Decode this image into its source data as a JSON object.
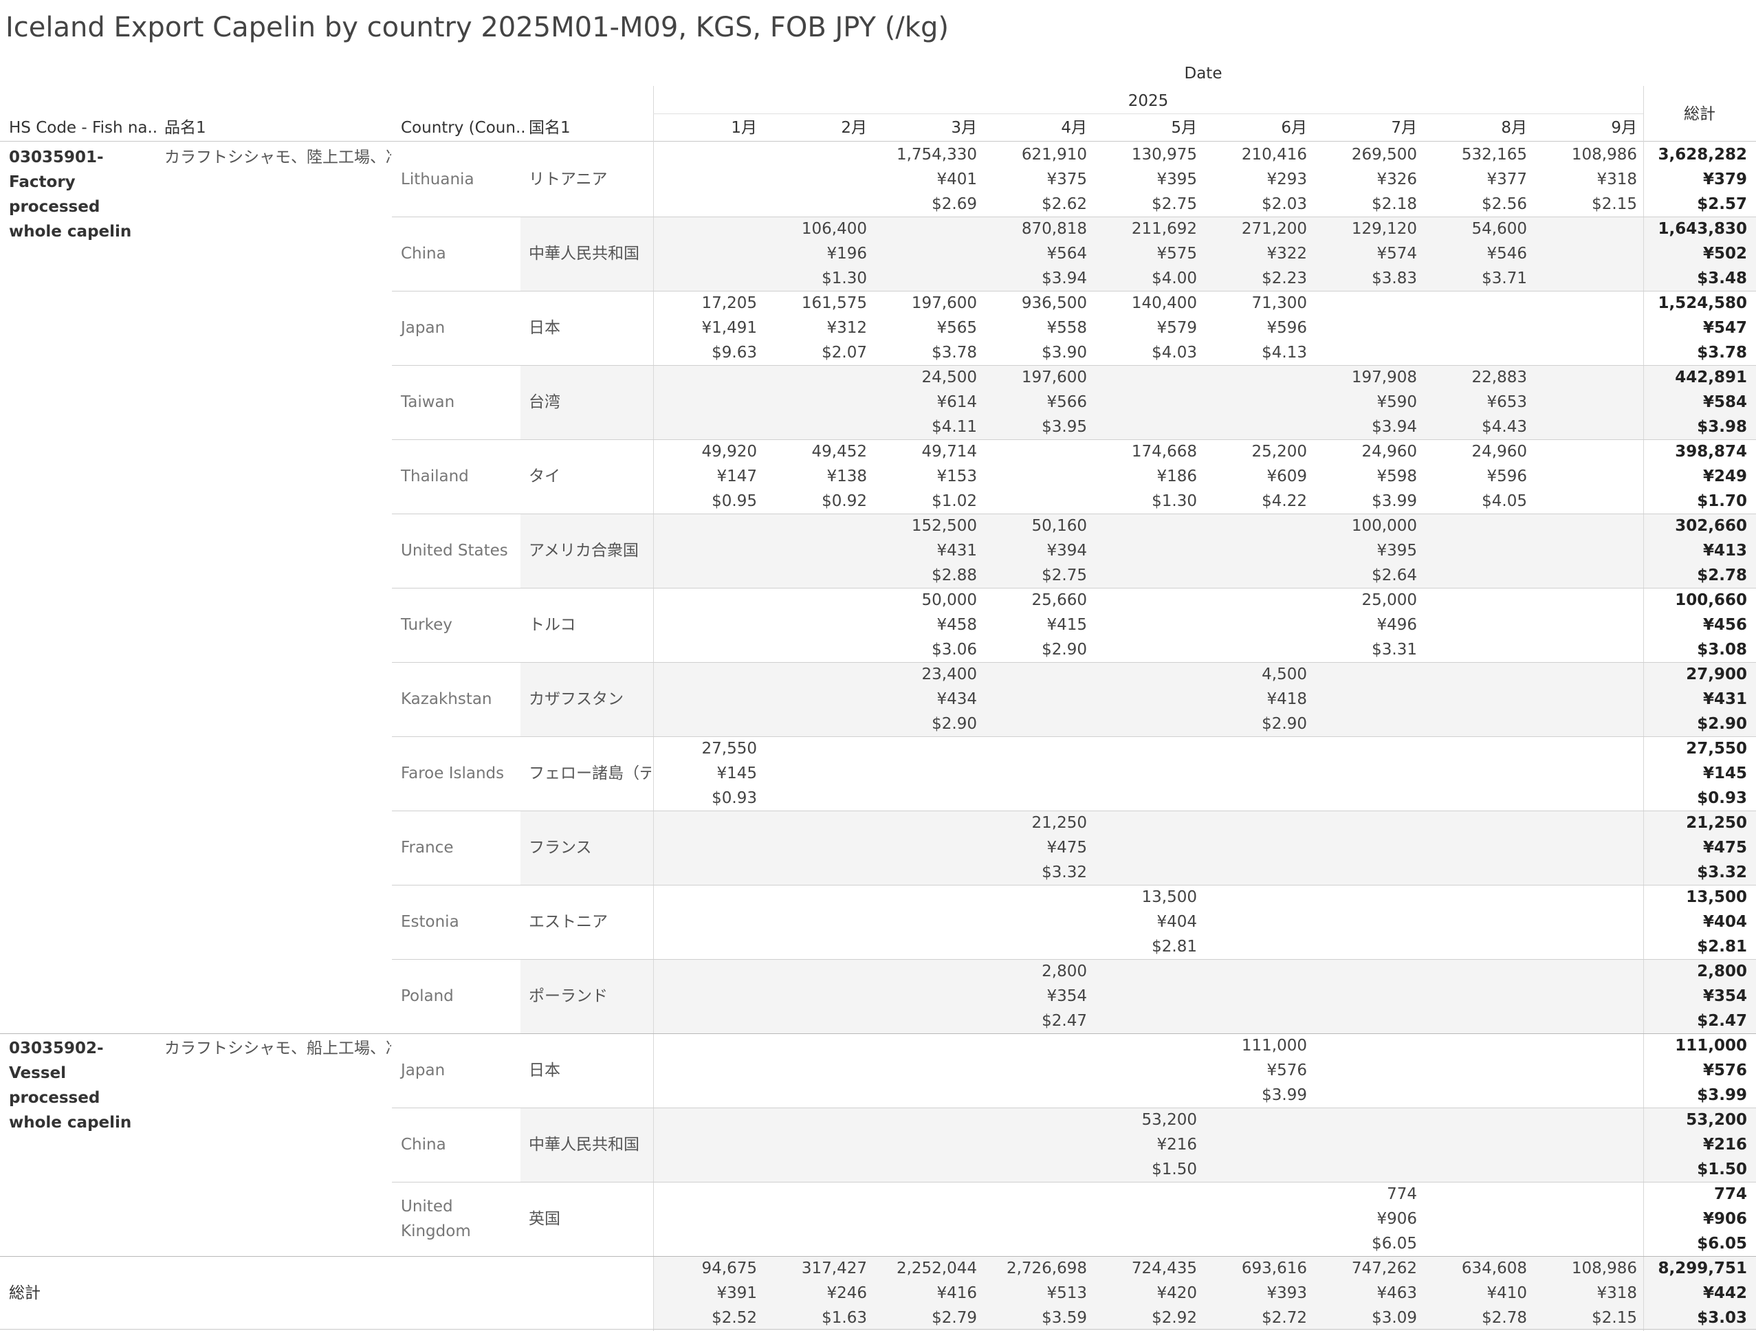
{
  "title": "Iceland Export Capelin by country 2025M01-M09, KGS, FOB JPY (/kg)",
  "header": {
    "date": "Date",
    "year": "2025",
    "hs_code": "HS Code - Fish na..",
    "name_ja": "品名1",
    "country": "Country (Coun..",
    "country_ja": "国名1",
    "months": [
      "1月",
      "2月",
      "3月",
      "4月",
      "5月",
      "6月",
      "7月",
      "8月",
      "9月"
    ],
    "total": "総計"
  },
  "groups": [
    {
      "code": "03035901-Factory processed whole capelin",
      "name_ja": "カラフトシシャモ、陸上工場、冷凍..",
      "rows": [
        {
          "country": "Lithuania",
          "country_ja": "リトアニア",
          "cells": [
            null,
            null,
            [
              "1,754,330",
              "¥401",
              "$2.69"
            ],
            [
              "621,910",
              "¥375",
              "$2.62"
            ],
            [
              "130,975",
              "¥395",
              "$2.75"
            ],
            [
              "210,416",
              "¥293",
              "$2.03"
            ],
            [
              "269,500",
              "¥326",
              "$2.18"
            ],
            [
              "532,165",
              "¥377",
              "$2.56"
            ],
            [
              "108,986",
              "¥318",
              "$2.15"
            ]
          ],
          "total": [
            "3,628,282",
            "¥379",
            "$2.57"
          ]
        },
        {
          "country": "China",
          "country_ja": "中華人民共和国",
          "cells": [
            null,
            [
              "106,400",
              "¥196",
              "$1.30"
            ],
            null,
            [
              "870,818",
              "¥564",
              "$3.94"
            ],
            [
              "211,692",
              "¥575",
              "$4.00"
            ],
            [
              "271,200",
              "¥322",
              "$2.23"
            ],
            [
              "129,120",
              "¥574",
              "$3.83"
            ],
            [
              "54,600",
              "¥546",
              "$3.71"
            ],
            null
          ],
          "total": [
            "1,643,830",
            "¥502",
            "$3.48"
          ]
        },
        {
          "country": "Japan",
          "country_ja": "日本",
          "cells": [
            [
              "17,205",
              "¥1,491",
              "$9.63"
            ],
            [
              "161,575",
              "¥312",
              "$2.07"
            ],
            [
              "197,600",
              "¥565",
              "$3.78"
            ],
            [
              "936,500",
              "¥558",
              "$3.90"
            ],
            [
              "140,400",
              "¥579",
              "$4.03"
            ],
            [
              "71,300",
              "¥596",
              "$4.13"
            ],
            null,
            null,
            null
          ],
          "total": [
            "1,524,580",
            "¥547",
            "$3.78"
          ]
        },
        {
          "country": "Taiwan",
          "country_ja": "台湾",
          "cells": [
            null,
            null,
            [
              "24,500",
              "¥614",
              "$4.11"
            ],
            [
              "197,600",
              "¥566",
              "$3.95"
            ],
            null,
            null,
            [
              "197,908",
              "¥590",
              "$3.94"
            ],
            [
              "22,883",
              "¥653",
              "$4.43"
            ],
            null
          ],
          "total": [
            "442,891",
            "¥584",
            "$3.98"
          ]
        },
        {
          "country": "Thailand",
          "country_ja": "タイ",
          "cells": [
            [
              "49,920",
              "¥147",
              "$0.95"
            ],
            [
              "49,452",
              "¥138",
              "$0.92"
            ],
            [
              "49,714",
              "¥153",
              "$1.02"
            ],
            null,
            [
              "174,668",
              "¥186",
              "$1.30"
            ],
            [
              "25,200",
              "¥609",
              "$4.22"
            ],
            [
              "24,960",
              "¥598",
              "$3.99"
            ],
            [
              "24,960",
              "¥596",
              "$4.05"
            ],
            null
          ],
          "total": [
            "398,874",
            "¥249",
            "$1.70"
          ]
        },
        {
          "country": "United States",
          "country_ja": "アメリカ合衆国",
          "cells": [
            null,
            null,
            [
              "152,500",
              "¥431",
              "$2.88"
            ],
            [
              "50,160",
              "¥394",
              "$2.75"
            ],
            null,
            null,
            [
              "100,000",
              "¥395",
              "$2.64"
            ],
            null,
            null
          ],
          "total": [
            "302,660",
            "¥413",
            "$2.78"
          ]
        },
        {
          "country": "Turkey",
          "country_ja": "トルコ",
          "cells": [
            null,
            null,
            [
              "50,000",
              "¥458",
              "$3.06"
            ],
            [
              "25,660",
              "¥415",
              "$2.90"
            ],
            null,
            null,
            [
              "25,000",
              "¥496",
              "$3.31"
            ],
            null,
            null
          ],
          "total": [
            "100,660",
            "¥456",
            "$3.08"
          ]
        },
        {
          "country": "Kazakhstan",
          "country_ja": "カザフスタン",
          "cells": [
            null,
            null,
            [
              "23,400",
              "¥434",
              "$2.90"
            ],
            null,
            null,
            [
              "4,500",
              "¥418",
              "$2.90"
            ],
            null,
            null,
            null
          ],
          "total": [
            "27,900",
            "¥431",
            "$2.90"
          ]
        },
        {
          "country": "Faroe Islands",
          "country_ja": "フェロー諸島（デ..",
          "cells": [
            [
              "27,550",
              "¥145",
              "$0.93"
            ],
            null,
            null,
            null,
            null,
            null,
            null,
            null,
            null
          ],
          "total": [
            "27,550",
            "¥145",
            "$0.93"
          ]
        },
        {
          "country": "France",
          "country_ja": "フランス",
          "cells": [
            null,
            null,
            null,
            [
              "21,250",
              "¥475",
              "$3.32"
            ],
            null,
            null,
            null,
            null,
            null
          ],
          "total": [
            "21,250",
            "¥475",
            "$3.32"
          ]
        },
        {
          "country": "Estonia",
          "country_ja": "エストニア",
          "cells": [
            null,
            null,
            null,
            null,
            [
              "13,500",
              "¥404",
              "$2.81"
            ],
            null,
            null,
            null,
            null
          ],
          "total": [
            "13,500",
            "¥404",
            "$2.81"
          ]
        },
        {
          "country": "Poland",
          "country_ja": "ポーランド",
          "cells": [
            null,
            null,
            null,
            [
              "2,800",
              "¥354",
              "$2.47"
            ],
            null,
            null,
            null,
            null,
            null
          ],
          "total": [
            "2,800",
            "¥354",
            "$2.47"
          ]
        }
      ]
    },
    {
      "code": "03035902-Vessel processed whole capelin",
      "name_ja": "カラフトシシャモ、船上工場、冷凍..",
      "rows": [
        {
          "country": "Japan",
          "country_ja": "日本",
          "cells": [
            null,
            null,
            null,
            null,
            null,
            [
              "111,000",
              "¥576",
              "$3.99"
            ],
            null,
            null,
            null
          ],
          "total": [
            "111,000",
            "¥576",
            "$3.99"
          ]
        },
        {
          "country": "China",
          "country_ja": "中華人民共和国",
          "cells": [
            null,
            null,
            null,
            null,
            [
              "53,200",
              "¥216",
              "$1.50"
            ],
            null,
            null,
            null,
            null
          ],
          "total": [
            "53,200",
            "¥216",
            "$1.50"
          ]
        },
        {
          "country": "United Kingdom",
          "country_ja": "英国",
          "cells": [
            null,
            null,
            null,
            null,
            null,
            null,
            [
              "774",
              "¥906",
              "$6.05"
            ],
            null,
            null
          ],
          "total": [
            "774",
            "¥906",
            "$6.05"
          ]
        }
      ]
    }
  ],
  "grand_total": {
    "label": "総計",
    "cells": [
      [
        "94,675",
        "¥391",
        "$2.52"
      ],
      [
        "317,427",
        "¥246",
        "$1.63"
      ],
      [
        "2,252,044",
        "¥416",
        "$2.79"
      ],
      [
        "2,726,698",
        "¥513",
        "$3.59"
      ],
      [
        "724,435",
        "¥420",
        "$2.92"
      ],
      [
        "693,616",
        "¥393",
        "$2.72"
      ],
      [
        "747,262",
        "¥463",
        "$3.09"
      ],
      [
        "634,608",
        "¥410",
        "$2.78"
      ],
      [
        "108,986",
        "¥318",
        "$2.15"
      ]
    ],
    "total": [
      "8,299,751",
      "¥442",
      "$3.03"
    ]
  }
}
